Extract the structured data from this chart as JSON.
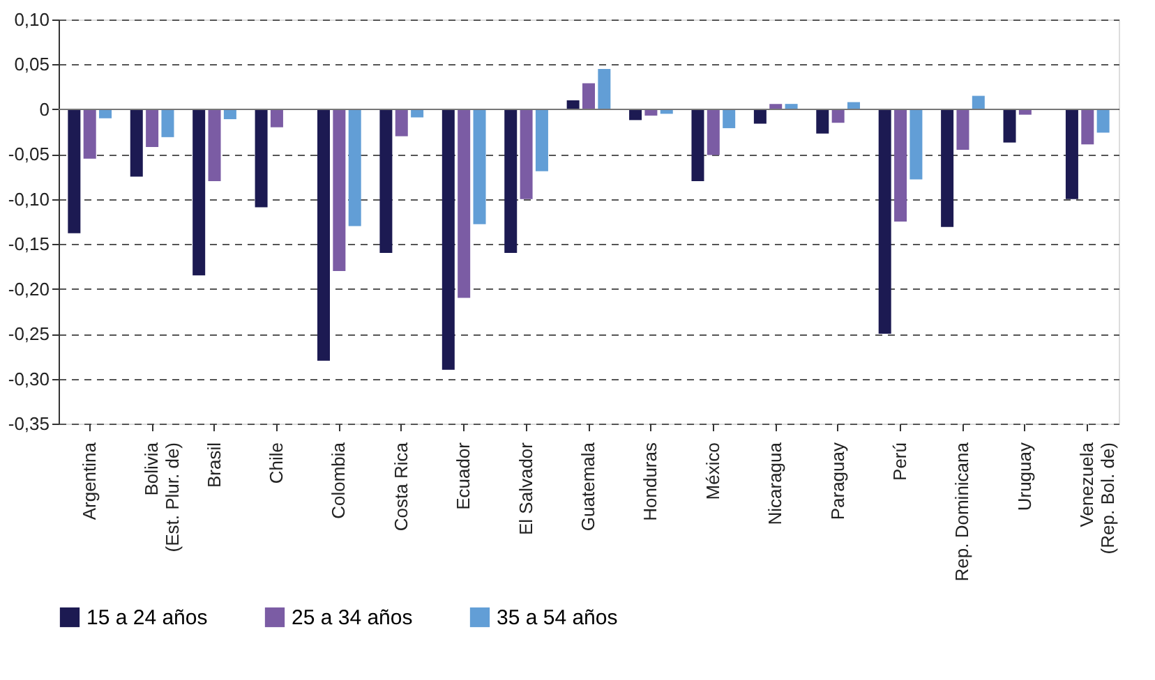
{
  "chart_data": {
    "type": "bar",
    "categories": [
      "Argentina",
      "Bolivia\n(Est. Plur. de)",
      "Brasil",
      "Chile",
      "Colombia",
      "Costa Rica",
      "Ecuador",
      "El Salvador",
      "Guatemala",
      "Honduras",
      "México",
      "Nicaragua",
      "Paraguay",
      "Perú",
      "Rep. Dominicana",
      "Uruguay",
      "Venezuela\n(Rep. Bol. de)"
    ],
    "series": [
      {
        "name": "15 a 24 años",
        "color": "#1c1a52",
        "values": [
          -0.138,
          -0.075,
          -0.185,
          -0.109,
          -0.28,
          -0.16,
          -0.29,
          -0.16,
          0.01,
          -0.012,
          -0.08,
          -0.016,
          -0.027,
          -0.25,
          -0.131,
          -0.037,
          -0.1
        ]
      },
      {
        "name": "25 a 34 años",
        "color": "#7b5ca4",
        "values": [
          -0.055,
          -0.042,
          -0.08,
          -0.02,
          -0.18,
          -0.03,
          -0.21,
          -0.1,
          0.029,
          -0.007,
          -0.051,
          0.006,
          -0.015,
          -0.125,
          -0.045,
          -0.006,
          -0.039
        ]
      },
      {
        "name": "35 a 54 años",
        "color": "#629ed6",
        "values": [
          -0.01,
          -0.031,
          -0.011,
          null,
          -0.13,
          -0.009,
          -0.128,
          -0.069,
          0.045,
          -0.005,
          -0.021,
          0.006,
          0.008,
          -0.078,
          0.015,
          null,
          -0.026
        ]
      }
    ],
    "ylim": [
      -0.35,
      0.1
    ],
    "yticks": [
      {
        "value": 0.1,
        "label": "0,10"
      },
      {
        "value": 0.05,
        "label": "0,05"
      },
      0,
      {
        "value": -0.05,
        "label": "-0,05"
      },
      {
        "value": -0.1,
        "label": "-0,10"
      },
      {
        "value": -0.15,
        "label": "-0,15"
      },
      {
        "value": -0.2,
        "label": "-0,20"
      },
      {
        "value": -0.25,
        "label": "-0,25"
      },
      {
        "value": -0.3,
        "label": "-0,30"
      },
      {
        "value": -0.35,
        "label": "-0,35"
      }
    ],
    "grid": "y",
    "legend": "bottom"
  }
}
